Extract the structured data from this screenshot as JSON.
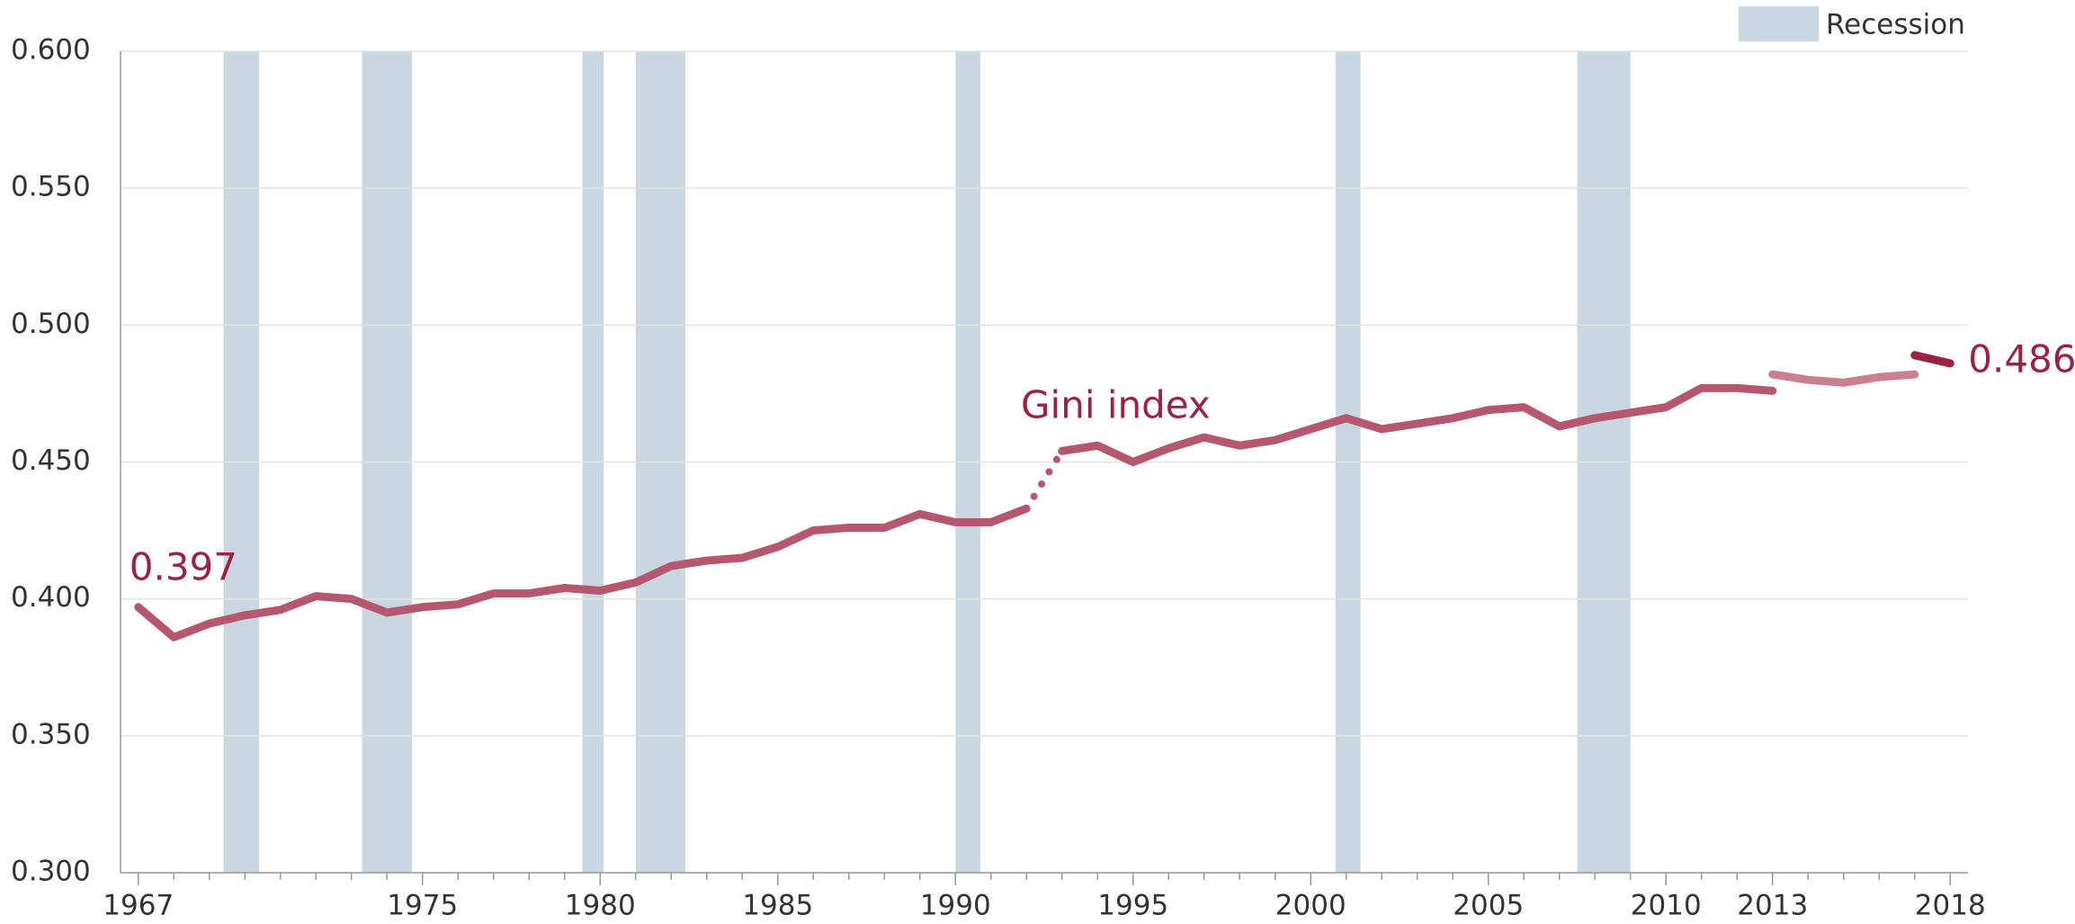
{
  "chart_data": {
    "type": "line",
    "annotations": [
      "Gini index"
    ],
    "legend": {
      "label": "Recession",
      "color": "#c9d7e0",
      "corner": "upper right"
    },
    "recessions": [
      [
        1969.4,
        1970.4
      ],
      [
        1973.3,
        1974.7
      ],
      [
        1979.5,
        1980.1
      ],
      [
        1981.0,
        1982.4
      ],
      [
        1990.0,
        1990.7
      ],
      [
        2000.7,
        2001.4
      ],
      [
        2007.5,
        2009.0
      ]
    ],
    "series": [
      {
        "name": "Gini index",
        "color": "#b5586f",
        "style": "solid",
        "x": [
          1967,
          1968,
          1969,
          1970,
          1971,
          1972,
          1973,
          1974,
          1975,
          1976,
          1977,
          1978,
          1979,
          1980,
          1981,
          1982,
          1983,
          1984,
          1985,
          1986,
          1987,
          1988,
          1989,
          1990,
          1991,
          1992
        ],
        "values": [
          0.397,
          0.386,
          0.391,
          0.394,
          0.396,
          0.401,
          0.4,
          0.395,
          0.397,
          0.398,
          0.402,
          0.402,
          0.404,
          0.403,
          0.406,
          0.412,
          0.414,
          0.415,
          0.419,
          0.425,
          0.426,
          0.426,
          0.431,
          0.428,
          0.428,
          0.433
        ]
      },
      {
        "color": "#b5586f",
        "style": "dotted",
        "x": [
          1992,
          1993
        ],
        "values": [
          0.433,
          0.454
        ]
      },
      {
        "color": "#b5586f",
        "style": "solid",
        "x": [
          1993,
          1994,
          1995,
          1996,
          1997,
          1998,
          1999,
          2000,
          2001,
          2002,
          2003,
          2004,
          2005,
          2006,
          2007,
          2008,
          2009,
          2010,
          2011,
          2012,
          2013
        ],
        "values": [
          0.454,
          0.456,
          0.45,
          0.455,
          0.459,
          0.456,
          0.458,
          0.462,
          0.466,
          0.462,
          0.464,
          0.466,
          0.469,
          0.47,
          0.463,
          0.466,
          0.468,
          0.47,
          0.477,
          0.477,
          0.476
        ]
      },
      {
        "color": "#c9808f",
        "style": "solid",
        "x": [
          2013,
          2014,
          2015,
          2016,
          2017
        ],
        "values": [
          0.482,
          0.48,
          0.479,
          0.481,
          0.482
        ]
      },
      {
        "color": "#9b2242",
        "style": "solid",
        "x": [
          2017,
          2018
        ],
        "values": [
          0.489,
          0.486
        ]
      }
    ],
    "xlim": [
      1966.5,
      2018.5
    ],
    "xticks": [
      1967,
      1975,
      1980,
      1985,
      1990,
      1995,
      2000,
      2005,
      2010,
      2013,
      2018
    ],
    "ylim": [
      0.3,
      0.6
    ],
    "yticks": [
      {
        "value": 0.3,
        "label": "0.300"
      },
      {
        "value": 0.35,
        "label": "0.350"
      },
      {
        "value": 0.4,
        "label": "0.400"
      },
      {
        "value": 0.45,
        "label": "0.450"
      },
      {
        "value": 0.5,
        "label": "0.500"
      },
      {
        "value": 0.55,
        "label": "0.550"
      },
      {
        "value": 0.6,
        "label": "0.600"
      }
    ],
    "grid": true
  }
}
